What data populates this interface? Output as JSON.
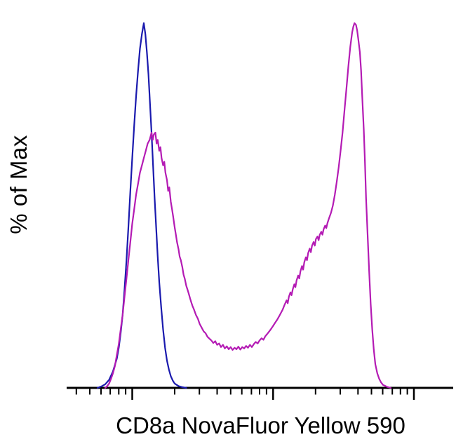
{
  "chart_data": {
    "type": "line",
    "subtype": "flow-cytometry-histogram-overlay",
    "title": "",
    "xlabel": "CD8a NovaFluor Yellow 590",
    "ylabel": "% of Max",
    "ylim": [
      0,
      100
    ],
    "background": "#ffffff",
    "axis_color": "#000000",
    "legend": "none",
    "x_axis": {
      "scale": "log",
      "tick_labels_visible": false,
      "major_ticks_pct": [
        17,
        53.5,
        90
      ],
      "minor_ticks_pct": [
        2.5,
        6.0,
        8.9,
        11.3,
        13.5,
        15.3,
        28.0,
        34.4,
        39.0,
        42.5,
        45.4,
        47.9,
        50.0,
        51.8,
        64.5,
        70.9,
        75.5,
        79.0,
        81.9,
        84.4,
        86.5,
        88.3
      ]
    },
    "series": [
      {
        "name": "blue-control-histogram",
        "color": "#1a1aae",
        "points": [
          [
            8,
            0
          ],
          [
            9,
            0.4
          ],
          [
            10,
            1
          ],
          [
            11,
            2.2
          ],
          [
            12,
            4.5
          ],
          [
            13,
            8
          ],
          [
            13.5,
            11
          ],
          [
            14,
            15
          ],
          [
            14.5,
            20
          ],
          [
            15,
            27
          ],
          [
            15.5,
            35
          ],
          [
            16,
            44
          ],
          [
            16.5,
            54
          ],
          [
            17,
            63
          ],
          [
            17.5,
            72
          ],
          [
            18,
            80
          ],
          [
            18.5,
            87
          ],
          [
            19,
            93
          ],
          [
            19.5,
            97
          ],
          [
            20,
            100
          ],
          [
            20.4,
            97
          ],
          [
            20.8,
            92
          ],
          [
            21.2,
            86
          ],
          [
            21.6,
            78
          ],
          [
            22,
            70
          ],
          [
            22.4,
            61
          ],
          [
            22.8,
            52
          ],
          [
            23.2,
            44
          ],
          [
            23.6,
            36
          ],
          [
            24,
            29
          ],
          [
            24.5,
            22
          ],
          [
            25,
            16
          ],
          [
            25.5,
            11
          ],
          [
            26,
            7.5
          ],
          [
            26.5,
            5
          ],
          [
            27,
            3.2
          ],
          [
            27.5,
            2
          ],
          [
            28,
            1.2
          ],
          [
            29,
            0.5
          ],
          [
            30,
            0.2
          ],
          [
            31,
            0
          ]
        ]
      },
      {
        "name": "magenta-cd8a-histogram",
        "color": "#b41bb4",
        "points": [
          [
            10,
            0
          ],
          [
            10.5,
            0.5
          ],
          [
            11,
            1.2
          ],
          [
            11.5,
            2.5
          ],
          [
            12,
            4
          ],
          [
            12.5,
            6
          ],
          [
            13,
            9
          ],
          [
            13.5,
            12
          ],
          [
            14,
            16
          ],
          [
            14.5,
            20
          ],
          [
            15,
            25
          ],
          [
            15.5,
            30
          ],
          [
            16,
            35
          ],
          [
            16.5,
            40
          ],
          [
            17,
            45
          ],
          [
            17.5,
            49
          ],
          [
            18,
            53
          ],
          [
            18.5,
            56
          ],
          [
            19,
            59
          ],
          [
            19.5,
            61
          ],
          [
            20,
            63
          ],
          [
            20.5,
            65
          ],
          [
            21,
            67
          ],
          [
            21.5,
            68
          ],
          [
            22,
            70
          ],
          [
            22.3,
            68
          ],
          [
            22.6,
            69.5
          ],
          [
            23,
            70
          ],
          [
            23.3,
            67
          ],
          [
            23.6,
            68
          ],
          [
            24,
            65
          ],
          [
            24.3,
            66
          ],
          [
            24.6,
            63
          ],
          [
            25,
            61
          ],
          [
            25.3,
            62
          ],
          [
            25.6,
            59
          ],
          [
            26,
            57
          ],
          [
            26.3,
            54
          ],
          [
            26.6,
            55
          ],
          [
            27,
            51
          ],
          [
            27.3,
            49
          ],
          [
            27.6,
            47
          ],
          [
            28,
            44
          ],
          [
            28.3,
            42
          ],
          [
            28.6,
            40
          ],
          [
            29,
            38
          ],
          [
            29.3,
            36
          ],
          [
            29.6,
            35
          ],
          [
            30,
            33
          ],
          [
            30.3,
            31
          ],
          [
            30.6,
            30
          ],
          [
            31,
            28
          ],
          [
            31.3,
            27
          ],
          [
            31.6,
            26
          ],
          [
            32,
            24.5
          ],
          [
            32.3,
            23.5
          ],
          [
            32.6,
            22.5
          ],
          [
            33,
            21.5
          ],
          [
            33.5,
            20
          ],
          [
            34,
            19
          ],
          [
            34.5,
            17.5
          ],
          [
            35,
            16.5
          ],
          [
            35.5,
            15.5
          ],
          [
            36,
            15
          ],
          [
            36.5,
            14
          ],
          [
            37,
            13.5
          ],
          [
            37.5,
            13
          ],
          [
            38,
            12.3
          ],
          [
            38.5,
            12.8
          ],
          [
            39,
            11.8
          ],
          [
            39.5,
            12.2
          ],
          [
            40,
            11.2
          ],
          [
            40.5,
            11.8
          ],
          [
            41,
            10.8
          ],
          [
            41.5,
            11.4
          ],
          [
            42,
            10.6
          ],
          [
            42.5,
            11.2
          ],
          [
            43,
            10.4
          ],
          [
            43.5,
            11
          ],
          [
            44,
            10.6
          ],
          [
            44.5,
            11.3
          ],
          [
            45,
            10.5
          ],
          [
            45.5,
            11.2
          ],
          [
            46,
            10.8
          ],
          [
            46.5,
            11.5
          ],
          [
            47,
            11
          ],
          [
            47.5,
            11.8
          ],
          [
            48,
            11.2
          ],
          [
            48.5,
            12
          ],
          [
            49,
            12.6
          ],
          [
            49.5,
            12.2
          ],
          [
            50,
            13
          ],
          [
            50.5,
            13.6
          ],
          [
            51,
            13.2
          ],
          [
            51.5,
            14.2
          ],
          [
            52,
            14.8
          ],
          [
            52.5,
            15.5
          ],
          [
            53,
            16.2
          ],
          [
            53.5,
            17
          ],
          [
            54,
            17.8
          ],
          [
            54.5,
            18.6
          ],
          [
            55,
            19.5
          ],
          [
            55.5,
            20.5
          ],
          [
            56,
            21.5
          ],
          [
            56.5,
            22.8
          ],
          [
            57,
            24
          ],
          [
            57.3,
            23.2
          ],
          [
            57.6,
            25
          ],
          [
            58,
            26.2
          ],
          [
            58.3,
            25.4
          ],
          [
            58.6,
            27
          ],
          [
            59,
            28.4
          ],
          [
            59.3,
            27.6
          ],
          [
            59.6,
            29.5
          ],
          [
            60,
            30.8
          ],
          [
            60.3,
            30
          ],
          [
            60.6,
            32
          ],
          [
            61,
            33.4
          ],
          [
            61.3,
            32.4
          ],
          [
            61.6,
            34.5
          ],
          [
            62,
            35.8
          ],
          [
            62.3,
            35
          ],
          [
            62.6,
            37
          ],
          [
            63,
            38.2
          ],
          [
            63.3,
            37.2
          ],
          [
            63.6,
            39
          ],
          [
            64,
            40
          ],
          [
            64.3,
            39
          ],
          [
            64.6,
            40.8
          ],
          [
            65,
            41.5
          ],
          [
            65.3,
            40.5
          ],
          [
            65.6,
            42
          ],
          [
            66,
            42.8
          ],
          [
            66.3,
            42
          ],
          [
            66.6,
            43.5
          ],
          [
            67,
            44.5
          ],
          [
            67.3,
            43.8
          ],
          [
            67.6,
            45.2
          ],
          [
            68,
            46.5
          ],
          [
            68.5,
            48
          ],
          [
            69,
            50
          ],
          [
            69.5,
            53
          ],
          [
            70,
            56.5
          ],
          [
            70.5,
            60.5
          ],
          [
            71,
            65
          ],
          [
            71.5,
            70
          ],
          [
            72,
            76
          ],
          [
            72.5,
            82
          ],
          [
            73,
            88
          ],
          [
            73.5,
            93.5
          ],
          [
            74,
            97.5
          ],
          [
            74.3,
            99
          ],
          [
            74.6,
            100
          ],
          [
            75,
            99.5
          ],
          [
            75.3,
            98
          ],
          [
            75.6,
            95.5
          ],
          [
            76,
            92
          ],
          [
            76.3,
            87
          ],
          [
            76.6,
            80
          ],
          [
            77,
            71
          ],
          [
            77.3,
            62
          ],
          [
            77.6,
            52
          ],
          [
            78,
            42
          ],
          [
            78.4,
            32
          ],
          [
            78.8,
            23
          ],
          [
            79.2,
            16
          ],
          [
            79.6,
            10.5
          ],
          [
            80,
            6.5
          ],
          [
            80.5,
            4
          ],
          [
            81,
            2.5
          ],
          [
            81.5,
            1.5
          ],
          [
            82,
            0.8
          ],
          [
            83,
            0.3
          ],
          [
            84,
            0
          ]
        ]
      }
    ]
  }
}
